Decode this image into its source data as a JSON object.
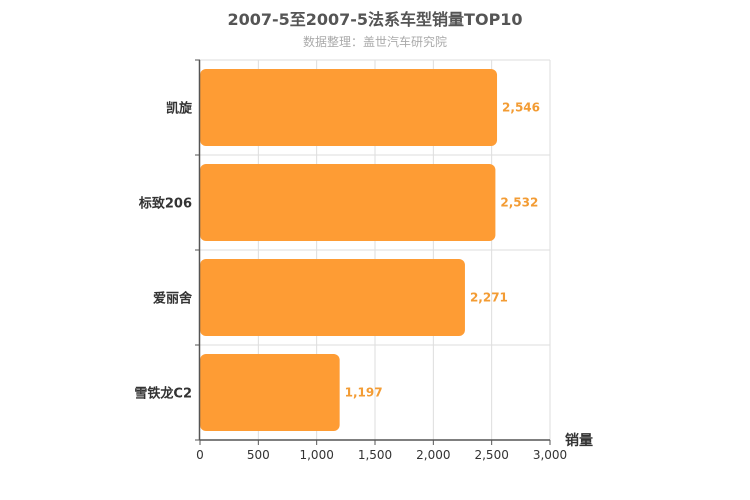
{
  "chart_data": {
    "type": "bar",
    "orientation": "horizontal",
    "title": "2007-5至2007-5法系车型销量TOP10",
    "subtitle": "数据整理：盖世汽车研究院",
    "categories": [
      "凯旋",
      "标致206",
      "爱丽舍",
      "雪铁龙C2"
    ],
    "values": [
      2546,
      2532,
      2271,
      1197
    ],
    "value_labels": [
      "2,546",
      "2,532",
      "2,271",
      "1,197"
    ],
    "xlabel": "销量",
    "ylabel": "",
    "xlim": [
      0,
      3000
    ],
    "x_ticks": [
      0,
      500,
      1000,
      1500,
      2000,
      2500,
      3000
    ],
    "x_tick_labels": [
      "0",
      "500",
      "1,000",
      "1,500",
      "2,000",
      "2,500",
      "3,000"
    ],
    "grid": true,
    "bar_color": "#fe9c34"
  }
}
